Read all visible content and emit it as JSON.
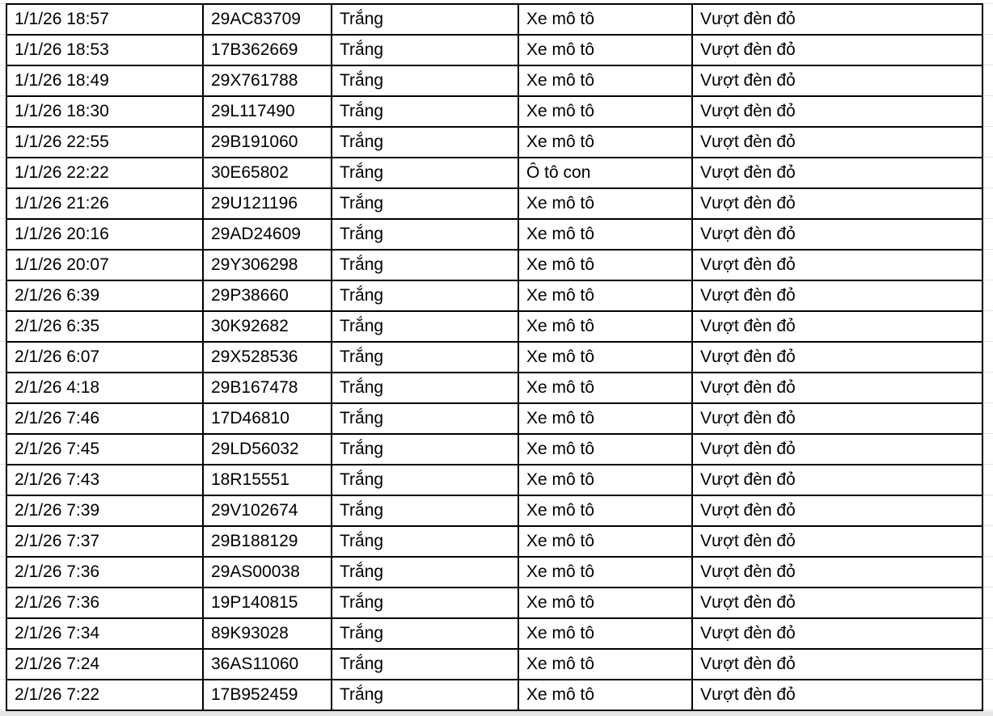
{
  "sheet": {
    "rows": [
      [
        "1/1/26 18:57",
        "29AC83709",
        "Trắng",
        "Xe mô tô",
        "Vượt đèn đỏ"
      ],
      [
        "1/1/26 18:53",
        "17B362669",
        "Trắng",
        "Xe mô tô",
        "Vượt đèn đỏ"
      ],
      [
        "1/1/26 18:49",
        "29X761788",
        "Trắng",
        "Xe mô tô",
        "Vượt đèn đỏ"
      ],
      [
        "1/1/26 18:30",
        "29L117490",
        "Trắng",
        "Xe mô tô",
        "Vượt đèn đỏ"
      ],
      [
        "1/1/26 22:55",
        "29B191060",
        "Trắng",
        "Xe mô tô",
        "Vượt đèn đỏ"
      ],
      [
        "1/1/26 22:22",
        "30E65802",
        "Trắng",
        "Ô tô con",
        "Vượt đèn đỏ"
      ],
      [
        "1/1/26 21:26",
        "29U121196",
        "Trắng",
        "Xe mô tô",
        "Vượt đèn đỏ"
      ],
      [
        "1/1/26 20:16",
        "29AD24609",
        "Trắng",
        "Xe mô tô",
        "Vượt đèn đỏ"
      ],
      [
        "1/1/26 20:07",
        "29Y306298",
        "Trắng",
        "Xe mô tô",
        "Vượt đèn đỏ"
      ],
      [
        "2/1/26 6:39",
        "29P38660",
        "Trắng",
        "Xe mô tô",
        "Vượt đèn đỏ"
      ],
      [
        "2/1/26 6:35",
        "30K92682",
        "Trắng",
        "Xe mô tô",
        "Vượt đèn đỏ"
      ],
      [
        "2/1/26 6:07",
        "29X528536",
        "Trắng",
        "Xe mô tô",
        "Vượt đèn đỏ"
      ],
      [
        "2/1/26 4:18",
        "29B167478",
        "Trắng",
        "Xe mô tô",
        "Vượt đèn đỏ"
      ],
      [
        "2/1/26 7:46",
        "17D46810",
        "Trắng",
        "Xe mô tô",
        "Vượt đèn đỏ"
      ],
      [
        "2/1/26 7:45",
        "29LD56032",
        "Trắng",
        "Xe mô tô",
        "Vượt đèn đỏ"
      ],
      [
        "2/1/26 7:43",
        "18R15551",
        "Trắng",
        "Xe mô tô",
        "Vượt đèn đỏ"
      ],
      [
        "2/1/26 7:39",
        "29V102674",
        "Trắng",
        "Xe mô tô",
        "Vượt đèn đỏ"
      ],
      [
        "2/1/26 7:37",
        "29B188129",
        "Trắng",
        "Xe mô tô",
        "Vượt đèn đỏ"
      ],
      [
        "2/1/26 7:36",
        "29AS00038",
        "Trắng",
        "Xe mô tô",
        "Vượt đèn đỏ"
      ],
      [
        "2/1/26 7:36",
        "19P140815",
        "Trắng",
        "Xe mô tô",
        "Vượt đèn đỏ"
      ],
      [
        "2/1/26 7:34",
        "89K93028",
        "Trắng",
        "Xe mô tô",
        "Vượt đèn đỏ"
      ],
      [
        "2/1/26 7:24",
        "36AS11060",
        "Trắng",
        "Xe mô tô",
        "Vượt đèn đỏ"
      ],
      [
        "2/1/26 7:22",
        "17B952459",
        "Trắng",
        "Xe mô tô",
        "Vượt đèn đỏ"
      ]
    ]
  }
}
